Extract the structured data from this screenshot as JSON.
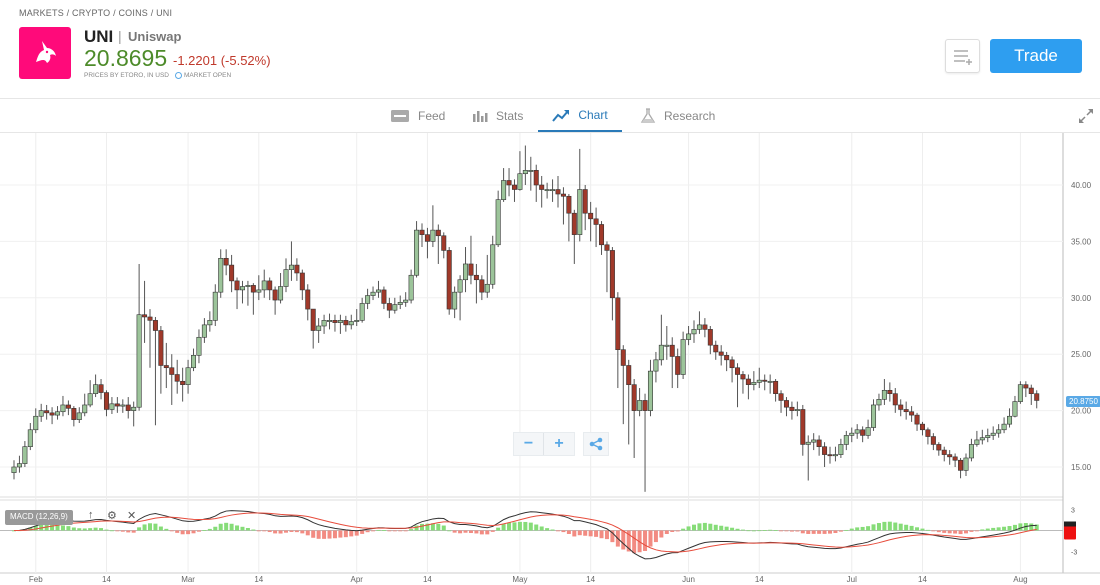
{
  "breadcrumb": "MARKETS / CRYPTO / COINS / UNI",
  "instrument": {
    "symbol": "UNI",
    "separator": "|",
    "name": "Uniswap",
    "price": "20.8695",
    "change": "-1.2201 (-5.52%)",
    "source": "PRICES BY ETORO, IN USD",
    "market_status": "MARKET OPEN"
  },
  "colors": {
    "logo": "#ff0a7a",
    "price_up": "#4d8b2a",
    "price_down": "#c0392b",
    "accent": "#2e9ef0",
    "tab_active": "#2a7ab8",
    "candle_up": "#9cc49a",
    "candle_down": "#a0392a",
    "macd_line": "#333333",
    "signal_line": "#e74c3c",
    "hist_up": "#86dc78",
    "hist_down": "#f28b82"
  },
  "header": {
    "trade_label": "Trade",
    "watchlist_icon": "add-to-list-icon"
  },
  "tabs": [
    {
      "label": "Feed",
      "icon": "feed-icon"
    },
    {
      "label": "Stats",
      "icon": "stats-icon"
    },
    {
      "label": "Chart",
      "icon": "chart-icon",
      "active": true
    },
    {
      "label": "Research",
      "icon": "flask-icon"
    }
  ],
  "chart_controls": {
    "zoom_out": "−",
    "zoom_in": "+",
    "share_icon": "share-icon",
    "expand_icon": "expand-icon"
  },
  "indicator": {
    "label": "MACD (12,26,9)",
    "icons": [
      "arrow-up-icon",
      "gear-icon",
      "close-icon"
    ]
  },
  "chart_data": {
    "type": "candlestick",
    "start_date": "Jan 28",
    "interval": "1 day",
    "y_ticks": [
      "15.00",
      "20.00",
      "25.00",
      "30.00",
      "35.00",
      "40.00"
    ],
    "ylim": [
      11.5,
      44.5
    ],
    "last_price_label": "20.8750",
    "x_ticks": [
      {
        "label": "Feb",
        "date": "Feb 1"
      },
      {
        "label": "14",
        "date": "Feb 14"
      },
      {
        "label": "Mar",
        "date": "Mar 1"
      },
      {
        "label": "14",
        "date": "Mar 14"
      },
      {
        "label": "Apr",
        "date": "Apr 1"
      },
      {
        "label": "14",
        "date": "Apr 14"
      },
      {
        "label": "May",
        "date": "May 1"
      },
      {
        "label": "14",
        "date": "May 14"
      },
      {
        "label": "Jun",
        "date": "Jun 1"
      },
      {
        "label": "14",
        "date": "Jun 14"
      },
      {
        "label": "Jul",
        "date": "Jul 1"
      },
      {
        "label": "14",
        "date": "Jul 14"
      },
      {
        "label": "Aug",
        "date": "Aug 1"
      }
    ],
    "macd_ticks": [
      "3",
      "-3"
    ],
    "grid": true,
    "close": [
      15.0,
      15.3,
      16.8,
      18.3,
      19.5,
      20.0,
      19.8,
      19.6,
      19.9,
      20.5,
      20.2,
      19.2,
      19.8,
      20.5,
      21.5,
      22.3,
      21.6,
      20.1,
      20.6,
      20.4,
      20.5,
      20.0,
      20.3,
      28.5,
      28.3,
      28.0,
      27.1,
      24.0,
      23.8,
      23.2,
      22.6,
      22.3,
      23.8,
      24.9,
      26.5,
      27.6,
      28.0,
      30.5,
      33.5,
      32.9,
      31.5,
      30.7,
      31.0,
      31.1,
      30.5,
      30.7,
      31.5,
      30.7,
      29.8,
      31.0,
      32.5,
      32.9,
      32.2,
      30.7,
      29.0,
      27.1,
      27.5,
      28.0,
      28.0,
      27.8,
      28.0,
      27.6,
      27.9,
      28.0,
      29.5,
      30.2,
      30.5,
      30.7,
      29.5,
      28.9,
      29.4,
      29.6,
      29.8,
      32.0,
      36.0,
      35.6,
      35.0,
      36.0,
      35.5,
      34.2,
      29.0,
      30.5,
      31.6,
      33.0,
      32.0,
      31.6,
      30.5,
      31.2,
      34.7,
      38.7,
      40.4,
      40.0,
      39.6,
      41.0,
      41.3,
      41.3,
      40.0,
      39.6,
      39.6,
      39.6,
      39.2,
      39.0,
      37.5,
      35.6,
      39.6,
      37.5,
      37.0,
      36.5,
      34.7,
      34.2,
      30.0,
      25.4,
      24.0,
      22.3,
      20.0,
      20.9,
      20.0,
      23.5,
      24.5,
      25.8,
      25.8,
      24.8,
      23.2,
      26.3,
      26.8,
      27.2,
      27.6,
      27.2,
      25.8,
      25.2,
      24.9,
      24.5,
      23.8,
      23.2,
      22.8,
      22.3,
      22.5,
      22.7,
      22.6,
      22.6,
      21.5,
      20.9,
      20.3,
      20.0,
      20.1,
      17.0,
      17.2,
      17.4,
      16.8,
      16.1,
      16.0,
      16.1,
      17.0,
      17.8,
      18.0,
      18.3,
      17.8,
      18.5,
      20.5,
      21.0,
      21.8,
      21.5,
      20.5,
      20.1,
      19.9,
      19.6,
      18.8,
      18.3,
      17.7,
      17.0,
      16.5,
      16.1,
      15.9,
      15.6,
      14.7,
      15.8,
      17.0,
      17.4,
      17.6,
      17.8,
      18.0,
      18.3,
      18.8,
      19.5,
      20.8,
      22.3,
      22.0,
      21.5,
      20.9
    ],
    "high": [
      15.6,
      16.0,
      17.3,
      18.9,
      20.2,
      20.6,
      20.5,
      20.3,
      20.4,
      21.3,
      20.9,
      20.4,
      20.3,
      21.5,
      22.7,
      23.2,
      22.8,
      21.8,
      21.2,
      21.2,
      21.0,
      21.2,
      20.8,
      33.0,
      31.5,
      29.0,
      28.3,
      27.5,
      26.0,
      25.0,
      24.5,
      23.8,
      24.5,
      25.5,
      27.2,
      28.2,
      28.8,
      31.2,
      34.3,
      34.3,
      33.8,
      31.8,
      31.5,
      31.5,
      31.3,
      32.0,
      32.5,
      31.8,
      31.0,
      32.2,
      33.5,
      35.0,
      33.5,
      32.5,
      31.2,
      29.0,
      28.2,
      28.5,
      28.6,
      28.5,
      28.5,
      28.4,
      28.5,
      29.0,
      30.0,
      30.8,
      31.0,
      31.5,
      31.0,
      30.0,
      30.0,
      30.2,
      30.5,
      32.5,
      36.8,
      36.6,
      36.2,
      38.2,
      36.5,
      35.8,
      34.5,
      31.0,
      32.0,
      34.5,
      35.5,
      33.0,
      32.0,
      33.8,
      35.5,
      39.5,
      41.5,
      41.5,
      40.5,
      43.0,
      43.5,
      42.5,
      41.8,
      40.8,
      40.2,
      40.5,
      40.8,
      39.8,
      39.2,
      37.8,
      43.2,
      40.0,
      38.5,
      38.0,
      36.8,
      35.0,
      34.5,
      30.5,
      25.8,
      24.5,
      22.8,
      22.0,
      21.5,
      24.5,
      25.2,
      28.5,
      27.5,
      26.5,
      25.5,
      27.0,
      27.5,
      28.0,
      28.8,
      28.2,
      27.5,
      26.2,
      25.8,
      25.2,
      24.8,
      24.2,
      23.5,
      23.2,
      23.5,
      23.8,
      23.2,
      23.2,
      22.8,
      21.8,
      21.2,
      20.8,
      20.8,
      20.5,
      17.8,
      18.0,
      17.8,
      17.2,
      16.8,
      16.8,
      17.5,
      18.2,
      18.5,
      18.8,
      18.6,
      19.2,
      21.0,
      21.5,
      22.8,
      22.5,
      22.0,
      21.0,
      20.8,
      20.4,
      19.8,
      19.0,
      18.5,
      18.0,
      17.2,
      16.8,
      16.5,
      16.2,
      15.8,
      16.2,
      17.5,
      18.2,
      18.3,
      18.4,
      18.6,
      18.8,
      19.4,
      20.2,
      21.3,
      22.6,
      22.6,
      22.3,
      21.8
    ],
    "low": [
      13.9,
      14.5,
      15.0,
      16.5,
      18.0,
      19.0,
      19.2,
      18.8,
      19.2,
      19.5,
      19.6,
      18.6,
      18.9,
      19.5,
      20.3,
      21.2,
      21.0,
      19.5,
      19.7,
      19.8,
      19.8,
      19.3,
      18.6,
      20.0,
      26.0,
      23.8,
      18.7,
      21.5,
      22.0,
      20.5,
      21.5,
      20.8,
      21.5,
      23.5,
      24.2,
      26.0,
      27.0,
      27.5,
      30.0,
      32.0,
      30.5,
      29.0,
      29.5,
      29.3,
      28.5,
      29.8,
      30.0,
      29.8,
      28.5,
      29.5,
      30.5,
      31.5,
      31.5,
      29.8,
      28.0,
      25.5,
      26.0,
      26.8,
      27.2,
      27.0,
      26.8,
      27.0,
      27.2,
      27.5,
      27.8,
      29.0,
      29.8,
      30.0,
      29.0,
      28.2,
      28.6,
      29.0,
      29.2,
      29.5,
      31.8,
      34.5,
      33.5,
      34.5,
      33.0,
      33.5,
      28.5,
      28.2,
      28.0,
      30.5,
      31.2,
      29.5,
      29.8,
      30.0,
      30.8,
      34.5,
      38.5,
      39.0,
      38.5,
      39.5,
      40.0,
      39.5,
      38.5,
      38.0,
      38.8,
      38.5,
      38.0,
      36.5,
      35.0,
      33.0,
      35.0,
      36.0,
      35.0,
      34.5,
      33.8,
      30.5,
      28.0,
      22.0,
      18.8,
      17.0,
      15.8,
      19.5,
      12.8,
      19.5,
      22.5,
      24.0,
      24.5,
      22.0,
      22.0,
      22.8,
      25.8,
      26.0,
      26.8,
      26.5,
      25.0,
      24.5,
      24.0,
      23.5,
      22.5,
      20.3,
      21.5,
      21.0,
      21.8,
      22.0,
      21.8,
      21.5,
      20.8,
      19.8,
      19.5,
      19.2,
      19.5,
      16.0,
      13.8,
      16.5,
      16.0,
      15.0,
      15.3,
      15.5,
      15.8,
      16.5,
      17.2,
      17.5,
      17.2,
      17.5,
      18.2,
      20.0,
      20.5,
      20.8,
      19.8,
      19.5,
      19.2,
      19.0,
      18.2,
      17.8,
      17.0,
      16.5,
      16.0,
      15.5,
      15.2,
      15.0,
      14.0,
      14.2,
      15.5,
      16.8,
      17.0,
      17.2,
      17.4,
      17.6,
      18.0,
      18.5,
      19.4,
      20.6,
      21.2,
      20.5,
      20.2
    ]
  }
}
